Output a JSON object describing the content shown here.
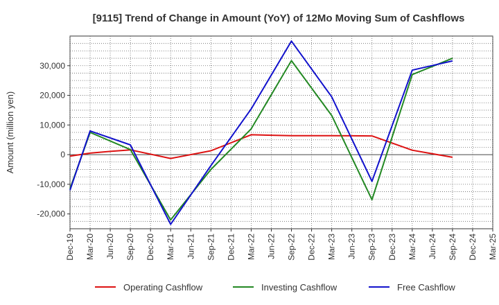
{
  "chart_data": {
    "type": "line",
    "title": "[9115]  Trend of Change in Amount (YoY) of 12Mo Moving Sum of Cashflows",
    "xlabel": "",
    "ylabel": "Amount (million yen)",
    "ylim": [
      -25000,
      40000
    ],
    "yticks": [
      -20000,
      -10000,
      0,
      10000,
      20000,
      30000
    ],
    "ytick_labels": [
      "-20,000",
      "-10,000",
      "0",
      "10,000",
      "20,000",
      "30,000"
    ],
    "grid": true,
    "legend_position": "bottom",
    "categories": [
      "Dec-19",
      "Mar-20",
      "Jun-20",
      "Sep-20",
      "Dec-20",
      "Mar-21",
      "Jun-21",
      "Sep-21",
      "Dec-21",
      "Mar-22",
      "Jun-22",
      "Sep-22",
      "Dec-22",
      "Mar-23",
      "Jun-23",
      "Sep-23",
      "Dec-23",
      "Mar-24",
      "Jun-24",
      "Sep-24",
      "Dec-24",
      "Mar-25"
    ],
    "series": [
      {
        "name": "Operating Cashflow",
        "color": "#dd1111",
        "values": [
          -500,
          500,
          1100,
          1600,
          null,
          -1300,
          null,
          1300,
          null,
          6700,
          null,
          6400,
          null,
          6400,
          null,
          6300,
          null,
          1500,
          null,
          -900,
          null,
          null
        ]
      },
      {
        "name": "Investing Cashflow",
        "color": "#228822",
        "values": [
          -11500,
          7500,
          null,
          1700,
          null,
          -22000,
          null,
          -5000,
          null,
          8700,
          null,
          31700,
          null,
          13200,
          null,
          -15200,
          null,
          27000,
          null,
          32500,
          null,
          null
        ]
      },
      {
        "name": "Free Cashflow",
        "color": "#1111cc",
        "values": [
          -12000,
          8000,
          null,
          3300,
          null,
          -23500,
          null,
          -3700,
          null,
          15400,
          null,
          38300,
          null,
          19500,
          null,
          -9000,
          null,
          28500,
          null,
          31600,
          null,
          null
        ]
      }
    ]
  }
}
